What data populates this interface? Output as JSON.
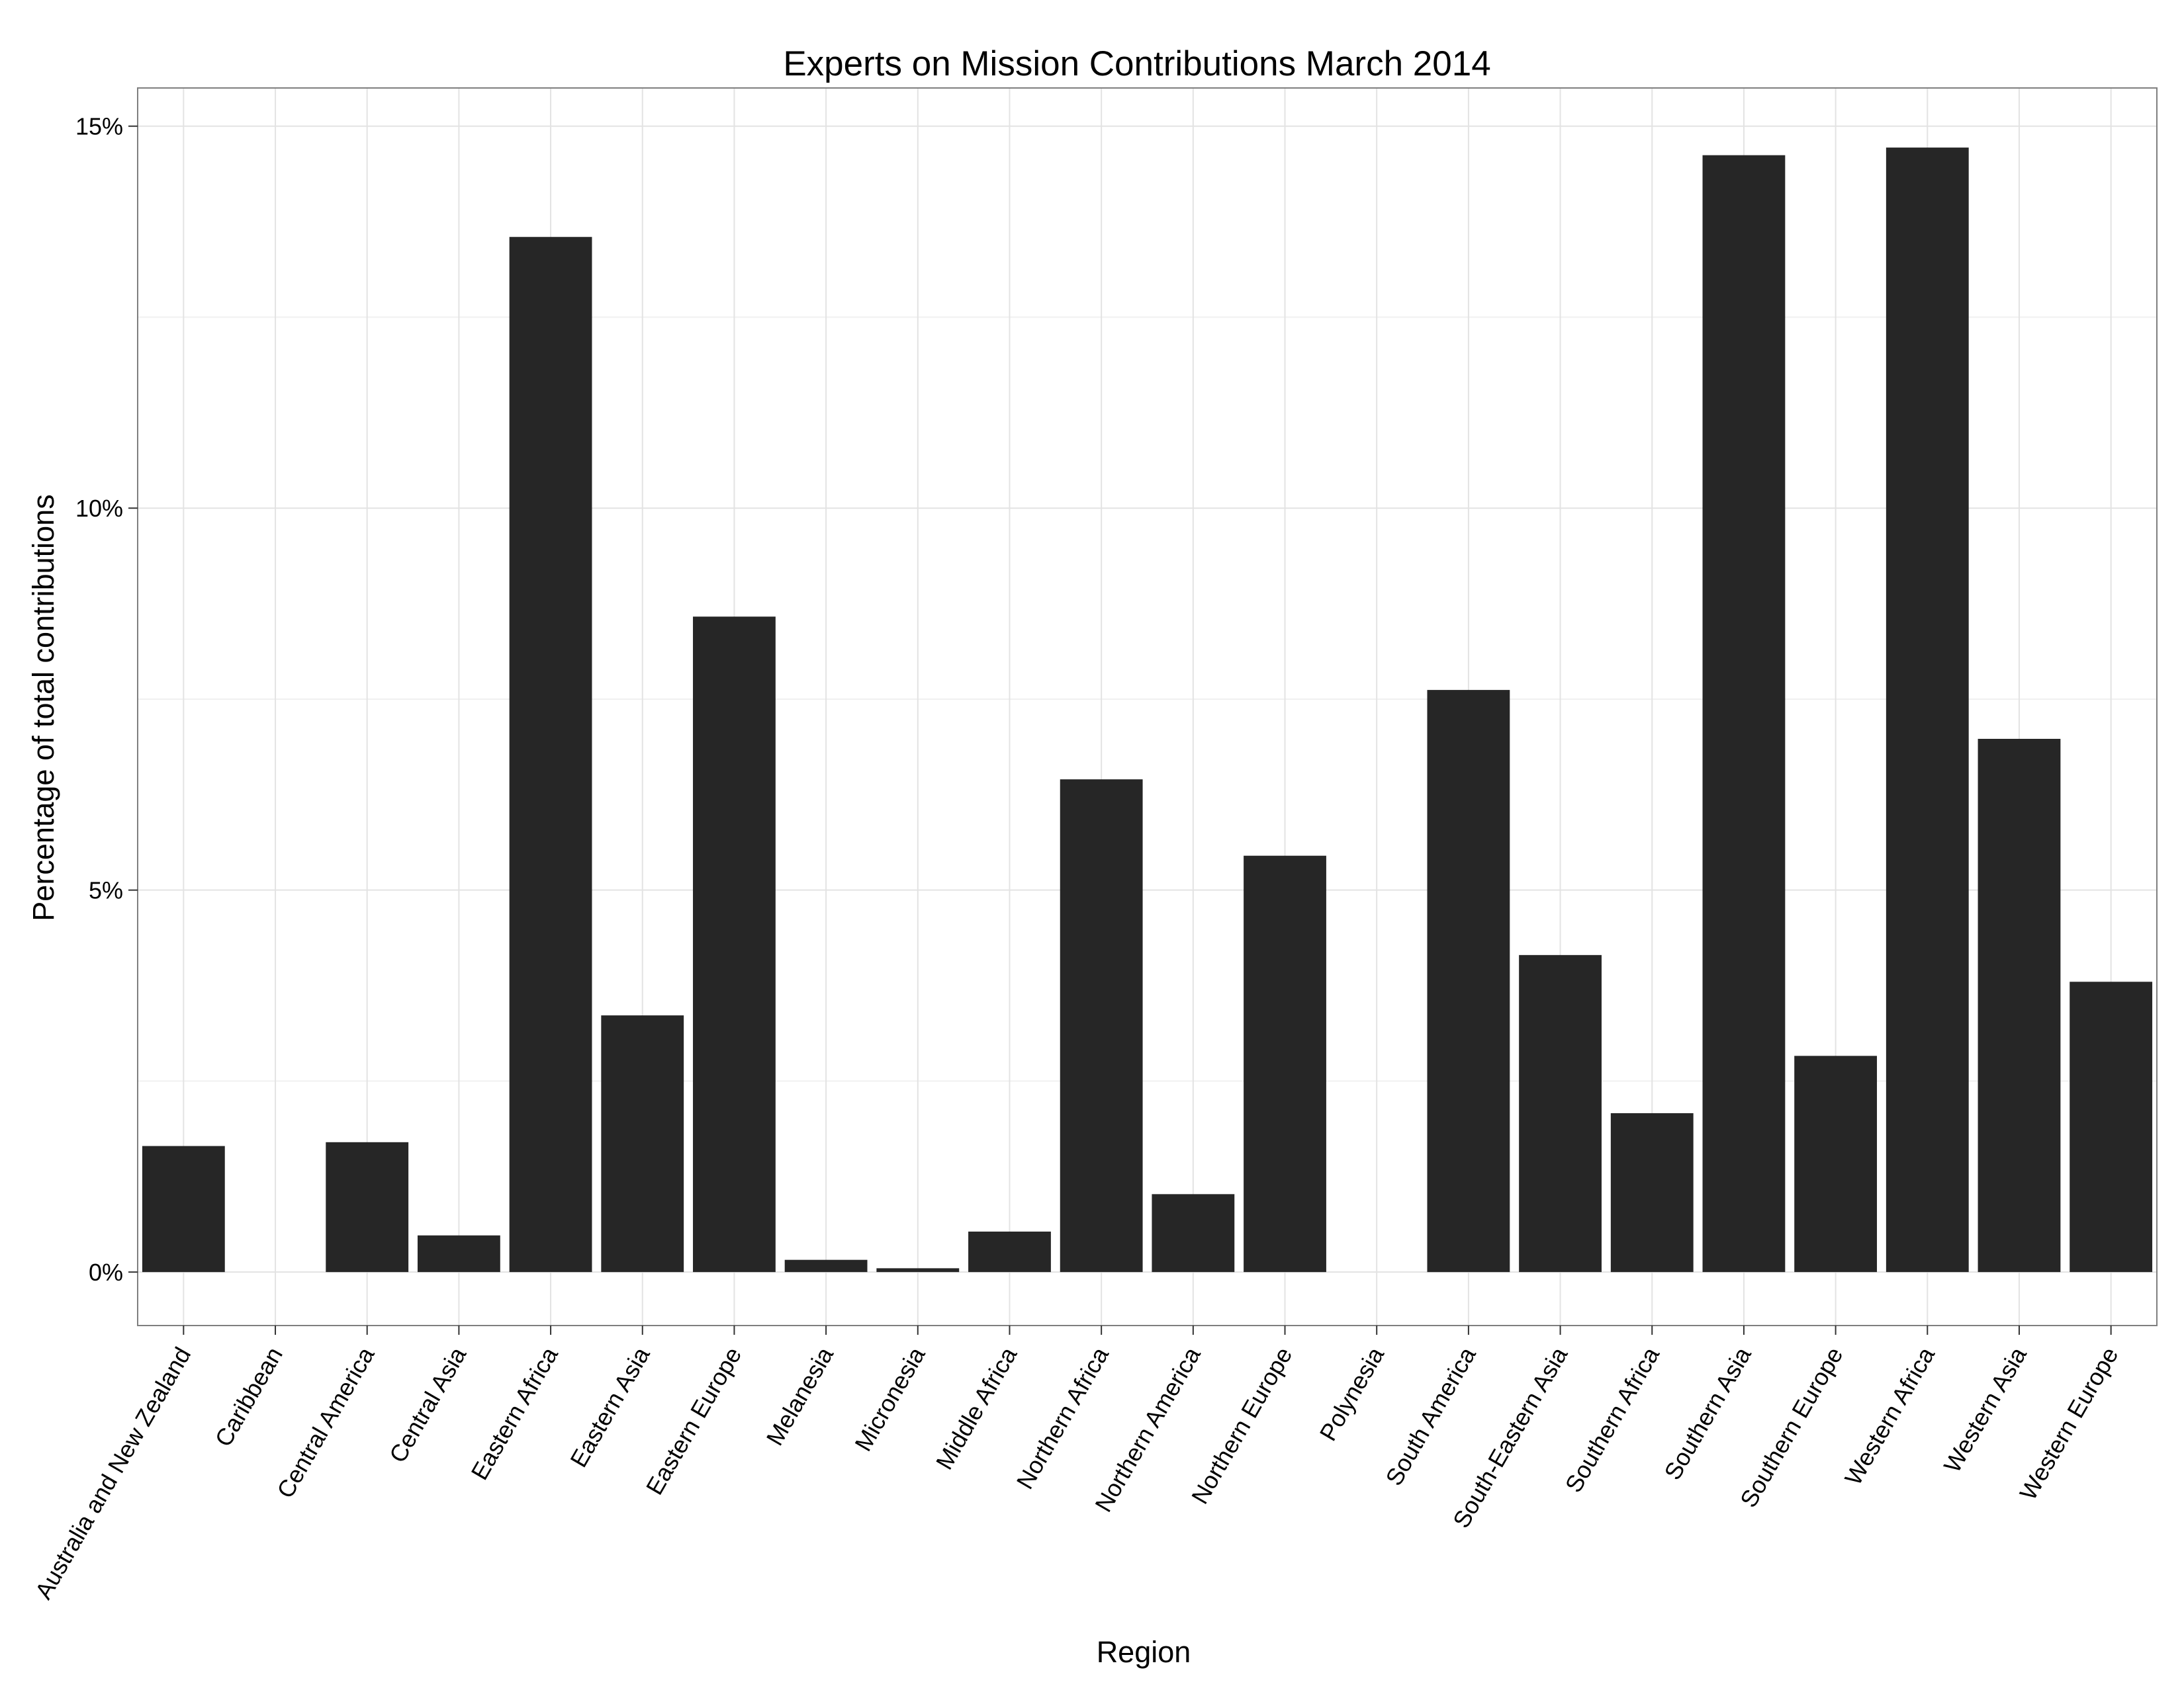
{
  "chart_data": {
    "type": "bar",
    "title": "Experts on Mission Contributions March 2014",
    "xlabel": "Region",
    "ylabel": "Percentage of total contributions",
    "categories": [
      "Australia and New Zealand",
      "Caribbean",
      "Central America",
      "Central Asia",
      "Eastern Africa",
      "Eastern Asia",
      "Eastern Europe",
      "Melanesia",
      "Micronesia",
      "Middle Africa",
      "Northern Africa",
      "Northern America",
      "Northern Europe",
      "Polynesia",
      "South America",
      "South-Eastern Asia",
      "Southern Africa",
      "Southern Asia",
      "Southern Europe",
      "Western Africa",
      "Western Asia",
      "Western Europe"
    ],
    "values": [
      1.65,
      0,
      1.7,
      0.48,
      13.55,
      3.36,
      8.58,
      0.16,
      0.05,
      0.53,
      6.45,
      1.02,
      5.45,
      0,
      7.62,
      4.15,
      2.08,
      14.62,
      2.83,
      14.72,
      6.98,
      3.8
    ],
    "unit": "%",
    "ylim": [
      -0.7,
      15.5
    ],
    "yticks": [
      0,
      5,
      10,
      15
    ],
    "ytick_labels": [
      "0%",
      "5%",
      "10%",
      "15%"
    ],
    "grid": true,
    "legend": "none",
    "colors": {
      "bar": "#262626",
      "grid_major": "#e3e3e3",
      "grid_minor": "#f0f0f0",
      "frame": "#7f7f7f",
      "text": "#000000"
    }
  }
}
